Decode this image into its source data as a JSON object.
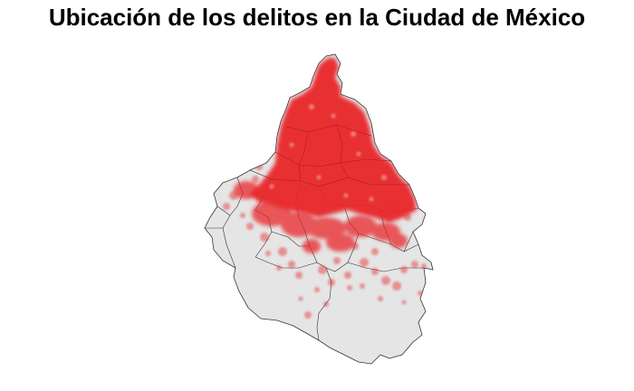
{
  "title": "Ubicación de los delitos en la Ciudad de México",
  "map": {
    "region": "Ciudad de México",
    "basemap_fill": "#e5e5e5",
    "border_color": "#333333",
    "point_color": "#e8262a",
    "point_opacity": 0.25,
    "background": "#ffffff",
    "density_note": "highest concentration in northern/central boroughs"
  }
}
